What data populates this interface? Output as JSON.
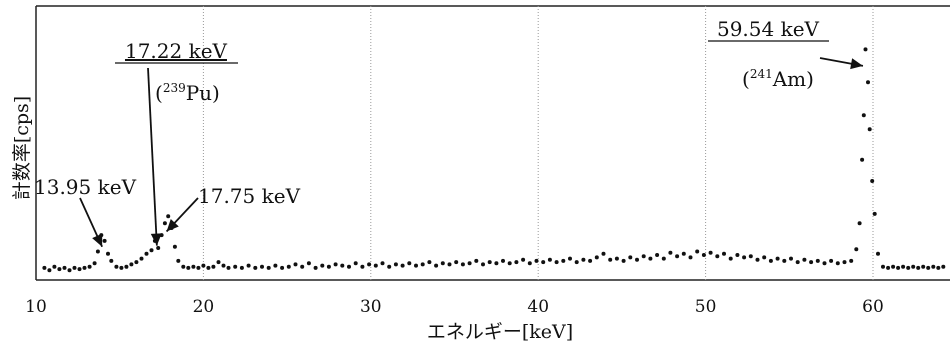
{
  "chart_data": {
    "type": "scatter",
    "xlabel": "エネルギー[keV]",
    "ylabel": "計数率[cps]",
    "xlim": [
      10,
      64.5
    ],
    "ylim": [
      0,
      10
    ],
    "grid": "x-only-dotted",
    "x_ticks": [
      "10",
      "20",
      "30",
      "40",
      "50",
      "60"
    ],
    "x_tick_values": [
      10,
      20,
      30,
      40,
      50,
      60
    ],
    "annotations": [
      {
        "id": "pu",
        "energy": "17.22 keV",
        "source_pre": "(",
        "source_mass": "239",
        "source_element": "Pu)",
        "underline": true,
        "x": 17.22,
        "y": 1.25
      },
      {
        "id": "am",
        "energy": "59.54 keV",
        "source_pre": "(",
        "source_mass": "241",
        "source_element": "Am)",
        "underline": true,
        "x": 59.4,
        "y": 8.9
      },
      {
        "id": "p1395",
        "energy": "13.95 keV",
        "x": 13.95,
        "y": 1.2
      },
      {
        "id": "p1775",
        "energy": "17.75 keV",
        "x": 17.8,
        "y": 1.85
      }
    ],
    "points": [
      [
        10.5,
        0.3
      ],
      [
        10.8,
        0.2
      ],
      [
        11.1,
        0.35
      ],
      [
        11.4,
        0.25
      ],
      [
        11.7,
        0.3
      ],
      [
        12.0,
        0.2
      ],
      [
        12.3,
        0.3
      ],
      [
        12.6,
        0.25
      ],
      [
        12.9,
        0.3
      ],
      [
        13.2,
        0.35
      ],
      [
        13.5,
        0.5
      ],
      [
        13.7,
        1.0
      ],
      [
        13.9,
        1.7
      ],
      [
        14.1,
        1.45
      ],
      [
        14.3,
        0.9
      ],
      [
        14.5,
        0.6
      ],
      [
        14.8,
        0.35
      ],
      [
        15.1,
        0.3
      ],
      [
        15.4,
        0.35
      ],
      [
        15.7,
        0.45
      ],
      [
        16.0,
        0.55
      ],
      [
        16.3,
        0.7
      ],
      [
        16.6,
        0.9
      ],
      [
        16.9,
        1.05
      ],
      [
        17.1,
        1.45
      ],
      [
        17.3,
        1.15
      ],
      [
        17.5,
        1.7
      ],
      [
        17.7,
        2.2
      ],
      [
        17.9,
        2.5
      ],
      [
        18.1,
        2.0
      ],
      [
        18.3,
        1.2
      ],
      [
        18.5,
        0.6
      ],
      [
        18.8,
        0.35
      ],
      [
        19.1,
        0.3
      ],
      [
        19.4,
        0.35
      ],
      [
        19.7,
        0.3
      ],
      [
        20.0,
        0.4
      ],
      [
        20.3,
        0.3
      ],
      [
        20.6,
        0.35
      ],
      [
        20.9,
        0.55
      ],
      [
        21.2,
        0.4
      ],
      [
        21.5,
        0.3
      ],
      [
        21.9,
        0.35
      ],
      [
        22.3,
        0.3
      ],
      [
        22.7,
        0.4
      ],
      [
        23.1,
        0.3
      ],
      [
        23.5,
        0.35
      ],
      [
        23.9,
        0.3
      ],
      [
        24.3,
        0.4
      ],
      [
        24.7,
        0.3
      ],
      [
        25.1,
        0.35
      ],
      [
        25.5,
        0.45
      ],
      [
        25.9,
        0.35
      ],
      [
        26.3,
        0.5
      ],
      [
        26.7,
        0.3
      ],
      [
        27.1,
        0.4
      ],
      [
        27.5,
        0.35
      ],
      [
        27.9,
        0.45
      ],
      [
        28.3,
        0.4
      ],
      [
        28.7,
        0.35
      ],
      [
        29.1,
        0.5
      ],
      [
        29.5,
        0.35
      ],
      [
        29.9,
        0.45
      ],
      [
        30.3,
        0.4
      ],
      [
        30.7,
        0.5
      ],
      [
        31.1,
        0.35
      ],
      [
        31.5,
        0.45
      ],
      [
        31.9,
        0.4
      ],
      [
        32.3,
        0.5
      ],
      [
        32.7,
        0.4
      ],
      [
        33.1,
        0.45
      ],
      [
        33.5,
        0.55
      ],
      [
        33.9,
        0.4
      ],
      [
        34.3,
        0.5
      ],
      [
        34.7,
        0.45
      ],
      [
        35.1,
        0.55
      ],
      [
        35.5,
        0.45
      ],
      [
        35.9,
        0.5
      ],
      [
        36.3,
        0.6
      ],
      [
        36.7,
        0.45
      ],
      [
        37.1,
        0.55
      ],
      [
        37.5,
        0.5
      ],
      [
        37.9,
        0.6
      ],
      [
        38.3,
        0.5
      ],
      [
        38.7,
        0.55
      ],
      [
        39.1,
        0.65
      ],
      [
        39.5,
        0.5
      ],
      [
        39.9,
        0.6
      ],
      [
        40.3,
        0.55
      ],
      [
        40.7,
        0.65
      ],
      [
        41.1,
        0.55
      ],
      [
        41.5,
        0.6
      ],
      [
        41.9,
        0.7
      ],
      [
        42.3,
        0.55
      ],
      [
        42.7,
        0.65
      ],
      [
        43.1,
        0.6
      ],
      [
        43.5,
        0.75
      ],
      [
        43.9,
        0.9
      ],
      [
        44.3,
        0.65
      ],
      [
        44.7,
        0.7
      ],
      [
        45.1,
        0.6
      ],
      [
        45.5,
        0.75
      ],
      [
        45.9,
        0.65
      ],
      [
        46.3,
        0.8
      ],
      [
        46.7,
        0.7
      ],
      [
        47.1,
        0.85
      ],
      [
        47.5,
        0.7
      ],
      [
        47.9,
        0.95
      ],
      [
        48.3,
        0.8
      ],
      [
        48.7,
        0.9
      ],
      [
        49.1,
        0.75
      ],
      [
        49.5,
        1.0
      ],
      [
        49.9,
        0.85
      ],
      [
        50.3,
        0.95
      ],
      [
        50.7,
        0.8
      ],
      [
        51.1,
        0.9
      ],
      [
        51.5,
        0.7
      ],
      [
        51.9,
        0.85
      ],
      [
        52.3,
        0.75
      ],
      [
        52.7,
        0.8
      ],
      [
        53.1,
        0.65
      ],
      [
        53.5,
        0.75
      ],
      [
        53.9,
        0.6
      ],
      [
        54.3,
        0.7
      ],
      [
        54.7,
        0.6
      ],
      [
        55.1,
        0.7
      ],
      [
        55.5,
        0.55
      ],
      [
        55.9,
        0.65
      ],
      [
        56.3,
        0.55
      ],
      [
        56.7,
        0.6
      ],
      [
        57.1,
        0.5
      ],
      [
        57.5,
        0.6
      ],
      [
        57.9,
        0.5
      ],
      [
        58.3,
        0.55
      ],
      [
        58.7,
        0.6
      ],
      [
        59.0,
        1.1
      ],
      [
        59.2,
        2.2
      ],
      [
        59.35,
        4.9
      ],
      [
        59.45,
        6.8
      ],
      [
        59.55,
        9.6
      ],
      [
        59.7,
        8.2
      ],
      [
        59.8,
        6.2
      ],
      [
        59.95,
        4.0
      ],
      [
        60.1,
        2.6
      ],
      [
        60.3,
        0.9
      ],
      [
        60.6,
        0.35
      ],
      [
        60.9,
        0.3
      ],
      [
        61.2,
        0.35
      ],
      [
        61.5,
        0.3
      ],
      [
        61.8,
        0.35
      ],
      [
        62.1,
        0.3
      ],
      [
        62.4,
        0.35
      ],
      [
        62.7,
        0.3
      ],
      [
        63.0,
        0.35
      ],
      [
        63.3,
        0.3
      ],
      [
        63.6,
        0.35
      ],
      [
        63.9,
        0.3
      ],
      [
        64.2,
        0.35
      ]
    ]
  }
}
